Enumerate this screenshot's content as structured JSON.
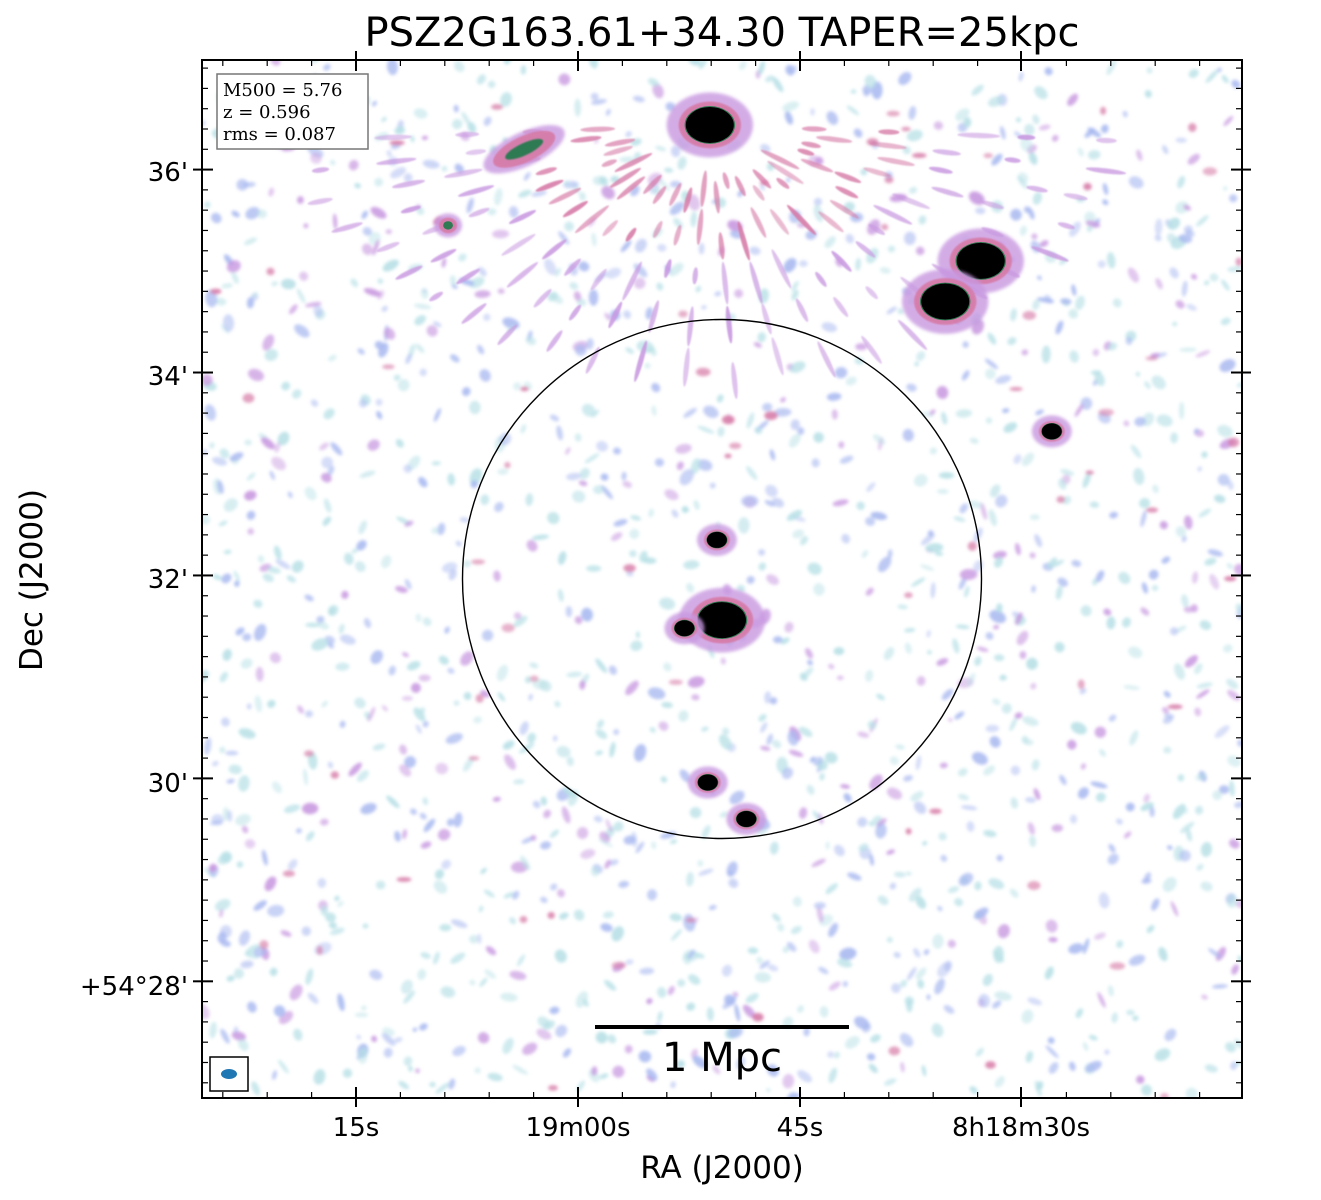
{
  "chart_data": {
    "type": "heatmap",
    "title": "PSZ2G163.61+34.30 TAPER=25kpc",
    "xlabel": "RA (J2000)",
    "ylabel": "Dec (J2000)",
    "x_tick_labels": [
      "15s",
      "19m00s",
      "45s",
      "8h18m30s"
    ],
    "y_tick_labels": [
      "36'",
      "34'",
      "32'",
      "30'",
      "+54°28'"
    ],
    "y_tick_values_arcmin": [
      36,
      34,
      32,
      30,
      28
    ],
    "ylim_arcmin": [
      26.85,
      37.08
    ],
    "info_box": [
      "M500 = 5.76",
      "z = 0.596",
      "rms = 0.087"
    ],
    "scale_bar_label": "1 Mpc",
    "circle": {
      "center_dec_arcmin": 31.98,
      "radius_arcmin": 2.55
    },
    "colors": {
      "frame": "#000000",
      "noise_light": "#b7e0e6",
      "noise_blue": "#a9b9f0",
      "noise_violet": "#c898e0",
      "emission_pink": "#d67aa6",
      "emission_green": "#2f7a52",
      "source_core": "#000000",
      "beam": "#1f77b4"
    },
    "sources": [
      {
        "dec_arcmin": 36.44,
        "ra_offset_arcmin": -0.12,
        "peak": "saturated"
      },
      {
        "dec_arcmin": 35.1,
        "ra_offset_arcmin": 2.55,
        "peak": "saturated"
      },
      {
        "dec_arcmin": 34.7,
        "ra_offset_arcmin": 2.2,
        "peak": "saturated"
      },
      {
        "dec_arcmin": 33.42,
        "ra_offset_arcmin": 3.25,
        "peak": "strong"
      },
      {
        "dec_arcmin": 32.35,
        "ra_offset_arcmin": -0.05,
        "peak": "strong"
      },
      {
        "dec_arcmin": 31.56,
        "ra_offset_arcmin": 0.0,
        "peak": "saturated"
      },
      {
        "dec_arcmin": 31.48,
        "ra_offset_arcmin": -0.37,
        "peak": "strong"
      },
      {
        "dec_arcmin": 29.96,
        "ra_offset_arcmin": -0.14,
        "peak": "strong"
      },
      {
        "dec_arcmin": 29.6,
        "ra_offset_arcmin": 0.24,
        "peak": "strong"
      },
      {
        "dec_arcmin": 36.2,
        "ra_offset_arcmin": -1.95,
        "peak": "extended"
      },
      {
        "dec_arcmin": 35.45,
        "ra_offset_arcmin": -2.7,
        "peak": "moderate"
      }
    ]
  }
}
